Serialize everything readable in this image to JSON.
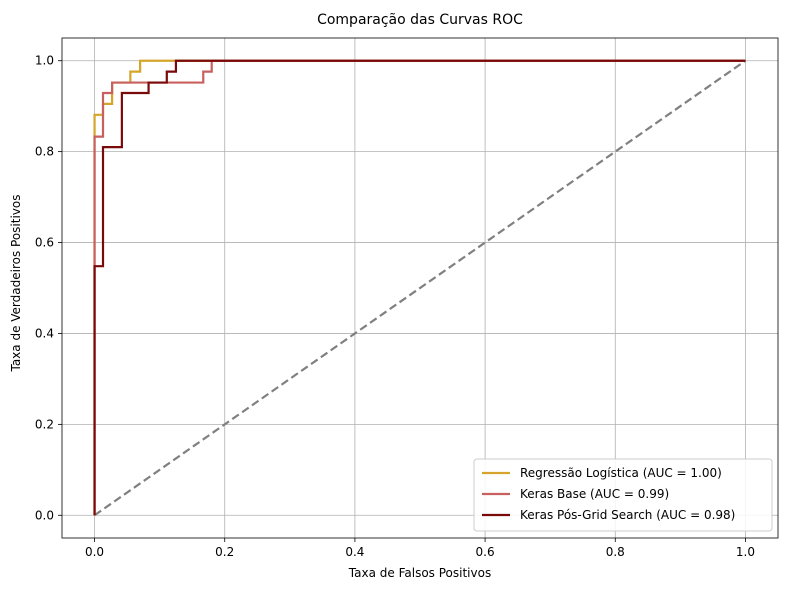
{
  "chart_data": {
    "type": "line",
    "title": "Comparação das Curvas ROC",
    "xlabel": "Taxa de Falsos Positivos",
    "ylabel": "Taxa de Verdadeiros Positivos",
    "xlim": [
      -0.05,
      1.05
    ],
    "ylim": [
      -0.05,
      1.05
    ],
    "xticks": [
      0.0,
      0.2,
      0.4,
      0.6,
      0.8,
      1.0
    ],
    "yticks": [
      0.0,
      0.2,
      0.4,
      0.6,
      0.8,
      1.0
    ],
    "xtick_labels": [
      "0.0",
      "0.2",
      "0.4",
      "0.6",
      "0.8",
      "1.0"
    ],
    "ytick_labels": [
      "0.0",
      "0.2",
      "0.4",
      "0.6",
      "0.8",
      "1.0"
    ],
    "grid": true,
    "legend_position": "lower-right",
    "series": [
      {
        "name": "Regressão Logística (AUC = 1.00)",
        "color": "#d4a52a",
        "style": "step",
        "x": [
          0.0,
          0.0,
          0.013,
          0.013,
          0.027,
          0.027,
          0.055,
          0.055,
          0.07,
          0.07,
          1.0
        ],
        "y": [
          0.0,
          0.881,
          0.881,
          0.905,
          0.905,
          0.952,
          0.952,
          0.976,
          0.976,
          1.0,
          1.0
        ]
      },
      {
        "name": "Keras Base (AUC = 0.99)",
        "color": "#c96060",
        "style": "step",
        "x": [
          0.0,
          0.0,
          0.013,
          0.013,
          0.027,
          0.027,
          0.167,
          0.167,
          0.18,
          0.18,
          1.0
        ],
        "y": [
          0.0,
          0.833,
          0.833,
          0.929,
          0.929,
          0.952,
          0.952,
          0.976,
          0.976,
          1.0,
          1.0
        ]
      },
      {
        "name": "Keras Pós-Grid Search (AUC = 0.98)",
        "color": "#7a0a0a",
        "style": "step",
        "x": [
          0.0,
          0.0,
          0.013,
          0.013,
          0.042,
          0.042,
          0.083,
          0.083,
          0.111,
          0.111,
          0.125,
          0.125,
          1.0
        ],
        "y": [
          0.0,
          0.548,
          0.548,
          0.81,
          0.81,
          0.929,
          0.929,
          0.952,
          0.952,
          0.976,
          0.976,
          1.0,
          1.0
        ]
      }
    ],
    "reference_line": {
      "color": "#808080",
      "style": "dashed",
      "x": [
        0.0,
        1.0
      ],
      "y": [
        0.0,
        1.0
      ]
    }
  }
}
